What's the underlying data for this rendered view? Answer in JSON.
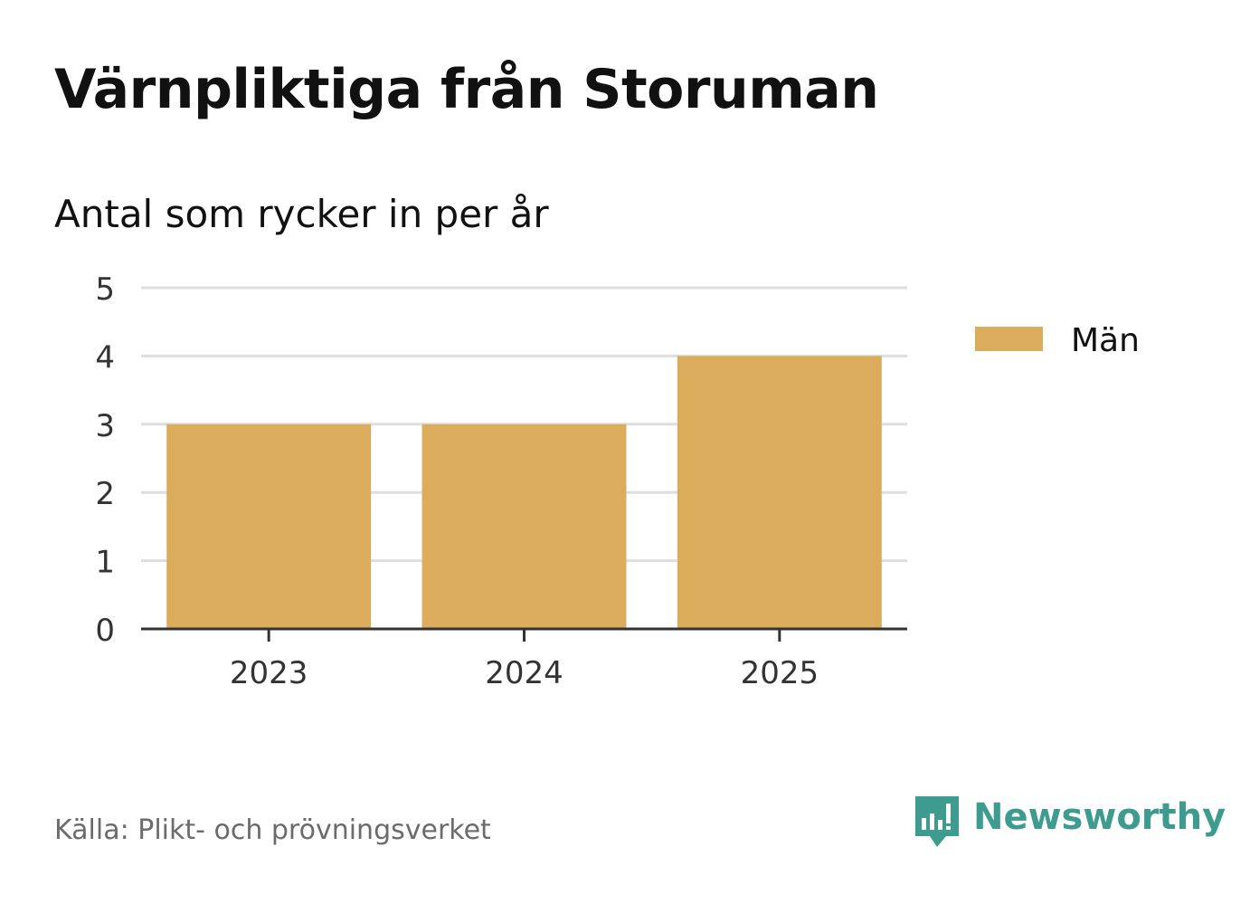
{
  "header": {
    "title": "Värnpliktiga från Storuman",
    "subtitle": "Antal som rycker in per år"
  },
  "chart_data": {
    "type": "bar",
    "categories": [
      "2023",
      "2024",
      "2025"
    ],
    "series": [
      {
        "name": "Män",
        "values": [
          3,
          3,
          4
        ],
        "color": "#dbac5b"
      }
    ],
    "ylim": [
      0,
      5
    ],
    "yticks": [
      "0",
      "1",
      "2",
      "3",
      "4",
      "5"
    ],
    "grid": true,
    "legend_position": "right"
  },
  "footer": {
    "source": "Källa: Plikt- och prövningsverket",
    "brand": "Newsworthy",
    "brand_color": "#3d9b8f",
    "brand_icon": "bar-chart-speech-bubble-icon"
  }
}
